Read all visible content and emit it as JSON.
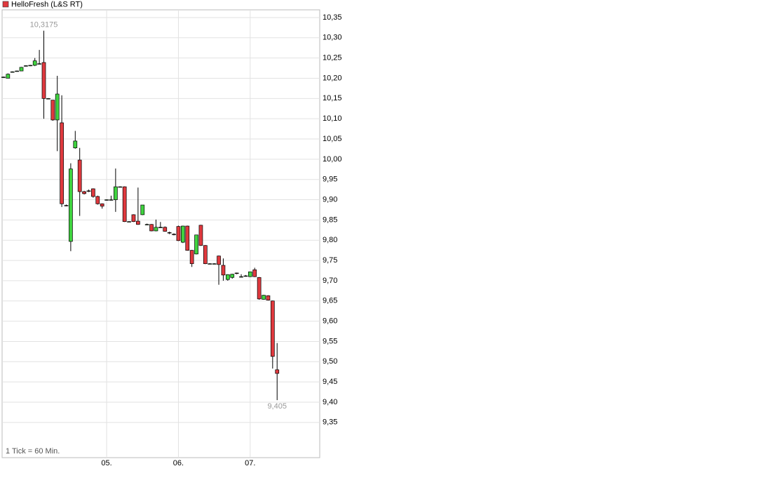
{
  "chart_data": {
    "type": "candlestick",
    "legend": "HelloFresh (L&S RT)",
    "footnote": "1 Tick = 60 Min.",
    "up_color": "#3fd33f",
    "down_color": "#e0393e",
    "grid": true,
    "x": [
      0,
      1,
      2,
      3,
      4,
      5,
      6,
      7,
      8,
      9,
      10,
      11,
      12,
      13,
      14,
      15,
      16,
      17,
      18,
      19,
      20,
      21,
      22,
      23,
      24,
      25,
      26,
      27,
      28,
      29,
      30,
      31,
      32,
      33,
      34,
      35,
      36,
      37,
      38,
      39,
      40,
      41,
      42,
      43,
      44,
      45,
      46,
      47,
      48,
      49,
      50,
      51,
      52,
      53,
      54,
      55,
      56,
      57,
      58,
      59,
      60,
      61
    ],
    "open": [
      10.203,
      10.2,
      10.215,
      10.218,
      10.218,
      10.23,
      10.231,
      10.232,
      10.235,
      10.239,
      10.15,
      10.146,
      10.097,
      10.09,
      9.886,
      9.797,
      10.028,
      9.998,
      9.92,
      9.922,
      9.927,
      9.908,
      9.89,
      9.899,
      9.9,
      9.9,
      9.932,
      9.932,
      9.846,
      9.863,
      9.847,
      9.863,
      9.839,
      9.839,
      9.823,
      9.832,
      9.832,
      9.819,
      9.815,
      9.834,
      9.795,
      9.835,
      9.775,
      9.766,
      9.837,
      9.787,
      9.742,
      9.742,
      9.761,
      9.738,
      9.703,
      9.708,
      9.719,
      9.71,
      9.712,
      9.71,
      9.727,
      9.708,
      9.654,
      9.663,
      9.65,
      9.48
    ],
    "high": [
      10.204,
      10.212,
      10.217,
      10.219,
      10.228,
      10.232,
      10.233,
      10.25,
      10.27,
      10.3175,
      10.151,
      10.146,
      10.206,
      10.158,
      9.888,
      9.99,
      10.07,
      10.028,
      9.922,
      9.925,
      9.928,
      9.91,
      9.891,
      9.901,
      9.91,
      9.977,
      9.933,
      9.933,
      9.847,
      9.864,
      9.93,
      9.887,
      9.841,
      9.84,
      9.851,
      9.845,
      9.834,
      9.821,
      9.817,
      9.836,
      9.836,
      9.836,
      9.776,
      9.813,
      9.838,
      9.788,
      9.743,
      9.743,
      9.762,
      9.755,
      9.716,
      9.717,
      9.72,
      9.716,
      9.714,
      9.722,
      9.732,
      9.709,
      9.665,
      9.664,
      9.651,
      9.546
    ],
    "low": [
      10.202,
      10.2,
      10.214,
      10.217,
      10.218,
      10.229,
      10.23,
      10.23,
      10.234,
      10.1,
      10.149,
      10.095,
      10.02,
      9.882,
      9.884,
      9.773,
      10.026,
      9.86,
      9.913,
      9.919,
      9.905,
      9.888,
      9.878,
      9.898,
      9.899,
      9.87,
      9.931,
      9.845,
      9.845,
      9.845,
      9.838,
      9.862,
      9.838,
      9.822,
      9.822,
      9.831,
      9.821,
      9.815,
      9.812,
      9.798,
      9.793,
      9.774,
      9.734,
      9.765,
      9.786,
      9.741,
      9.741,
      9.741,
      9.69,
      9.7,
      9.7,
      9.705,
      9.716,
      9.708,
      9.71,
      9.709,
      9.709,
      9.653,
      9.653,
      9.651,
      9.483,
      9.405
    ],
    "close": [
      10.203,
      10.21,
      10.216,
      10.218,
      10.227,
      10.231,
      10.232,
      10.243,
      10.236,
      10.15,
      10.15,
      10.097,
      10.161,
      9.89,
      9.885,
      9.976,
      10.045,
      9.92,
      9.915,
      9.921,
      9.908,
      9.89,
      9.884,
      9.9,
      9.9,
      9.932,
      9.932,
      9.846,
      9.846,
      9.846,
      9.839,
      9.887,
      9.839,
      9.823,
      9.832,
      9.832,
      9.822,
      9.818,
      9.814,
      9.799,
      9.835,
      9.775,
      9.742,
      9.813,
      9.787,
      9.742,
      9.742,
      9.742,
      9.74,
      9.714,
      9.715,
      9.716,
      9.718,
      9.71,
      9.712,
      9.722,
      9.71,
      9.655,
      9.664,
      9.652,
      9.513,
      9.471
    ],
    "annotations": [
      {
        "label": "10,3175",
        "x": 9,
        "value": 10.3175,
        "side": "top"
      },
      {
        "label": "9,405",
        "x": 61,
        "value": 9.405,
        "side": "bottom"
      }
    ],
    "xlim": [
      -0.3,
      70.5
    ],
    "xticks": [
      {
        "value": 23,
        "label": "05."
      },
      {
        "value": 39,
        "label": "06."
      },
      {
        "value": 55,
        "label": "07."
      }
    ],
    "ylim": [
      9.263,
      10.369
    ],
    "yticks": [
      {
        "value": 10.35,
        "label": "10,35"
      },
      {
        "value": 10.3,
        "label": "10,30"
      },
      {
        "value": 10.25,
        "label": "10,25"
      },
      {
        "value": 10.2,
        "label": "10,20"
      },
      {
        "value": 10.15,
        "label": "10,15"
      },
      {
        "value": 10.1,
        "label": "10,10"
      },
      {
        "value": 10.05,
        "label": "10,05"
      },
      {
        "value": 10.0,
        "label": "10,00"
      },
      {
        "value": 9.95,
        "label": "9,95"
      },
      {
        "value": 9.9,
        "label": "9,90"
      },
      {
        "value": 9.85,
        "label": "9,85"
      },
      {
        "value": 9.8,
        "label": "9,80"
      },
      {
        "value": 9.75,
        "label": "9,75"
      },
      {
        "value": 9.7,
        "label": "9,70"
      },
      {
        "value": 9.65,
        "label": "9,65"
      },
      {
        "value": 9.6,
        "label": "9,60"
      },
      {
        "value": 9.55,
        "label": "9,55"
      },
      {
        "value": 9.5,
        "label": "9,50"
      },
      {
        "value": 9.45,
        "label": "9,45"
      },
      {
        "value": 9.4,
        "label": "9,40"
      },
      {
        "value": 9.35,
        "label": "9,35"
      }
    ]
  }
}
